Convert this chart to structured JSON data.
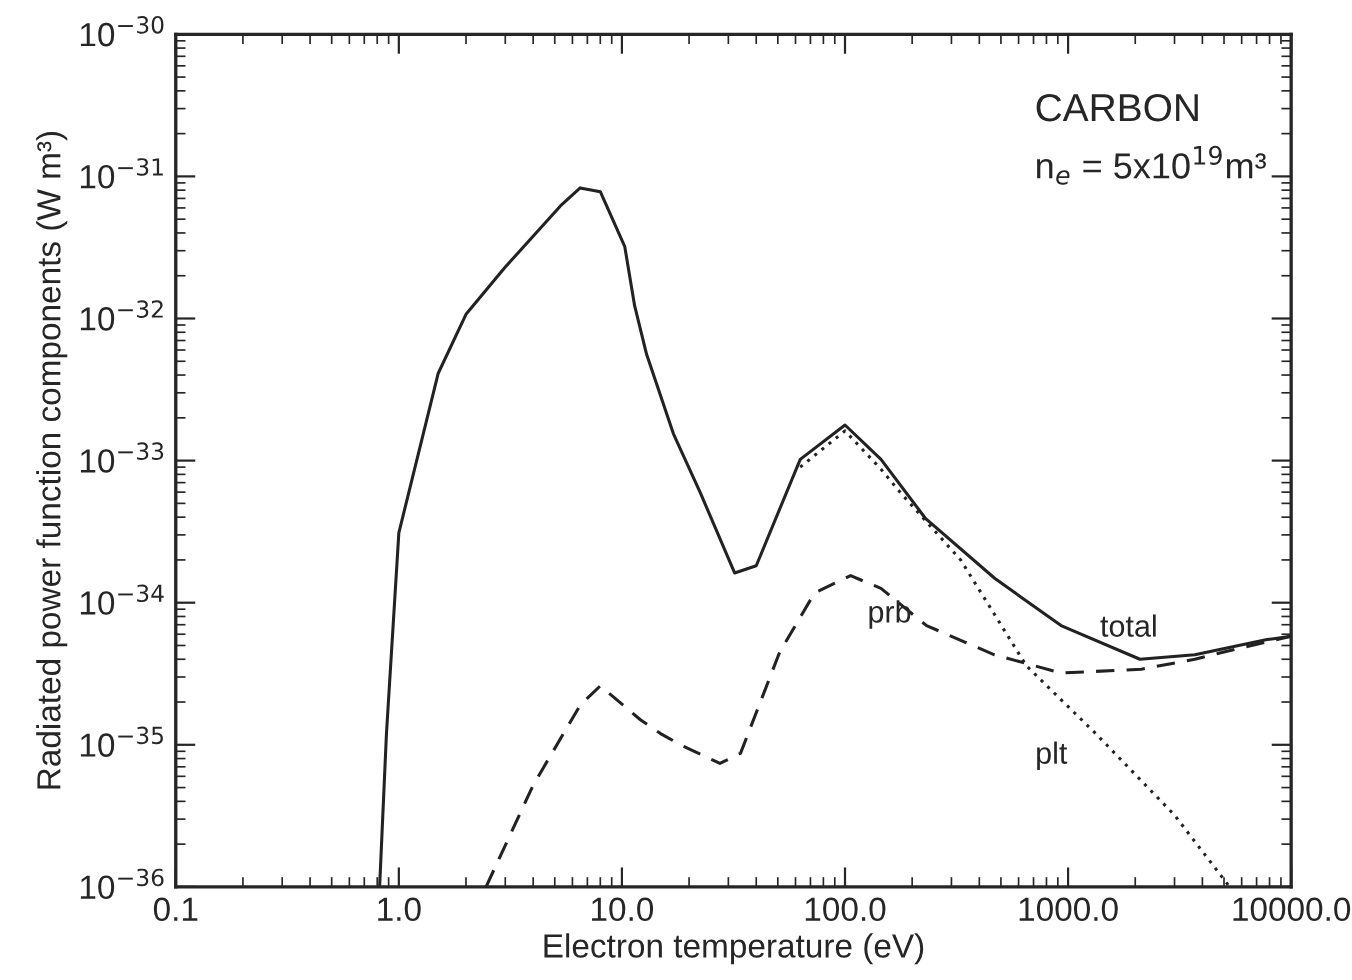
{
  "chart_data": {
    "type": "line",
    "xlabel": "Electron temperature (eV)",
    "ylabel": "Radiated power function components (W m³)",
    "log": "xy",
    "grid": false,
    "legend": false,
    "marker": "none",
    "xlim": [
      0.1,
      10000
    ],
    "ylim": [
      1e-36,
      1e-30
    ],
    "xticks": [
      {
        "value": 0.1,
        "label": "0.1"
      },
      {
        "value": 1,
        "label": "1.0"
      },
      {
        "value": 10,
        "label": "10.0"
      },
      {
        "value": 100,
        "label": "100.0"
      },
      {
        "value": 1000,
        "label": "1000.0"
      },
      {
        "value": 10000,
        "label": "10000.0"
      }
    ],
    "yticks": [
      {
        "value": 1e-36,
        "label": "10$^{−36}$"
      },
      {
        "value": 1e-35,
        "label": "10$^{−35}$"
      },
      {
        "value": 1e-34,
        "label": "10$^{−34}$"
      },
      {
        "value": 1e-33,
        "label": "10$^{−33}$"
      },
      {
        "value": 1e-32,
        "label": "10$^{−32}$"
      },
      {
        "value": 1e-31,
        "label": "10$^{−31}$"
      },
      {
        "value": 1e-30,
        "label": "10$^{−30}$"
      }
    ],
    "series": [
      {
        "name": "total",
        "color": "#222222",
        "line_style": "solid",
        "x": [
          0.82,
          0.88,
          1.0,
          1.5,
          2.0,
          3.0,
          5.3,
          6.5,
          8.0,
          10.3,
          11.4,
          12.9,
          17,
          22.5,
          32,
          40,
          63,
          100,
          145,
          230,
          470,
          930,
          2100,
          3700,
          7800,
          10000
        ],
        "values": [
          1e-36,
          1.2e-35,
          3.1e-34,
          4.1e-33,
          1.07e-32,
          2.3e-32,
          6.2e-32,
          8.3e-32,
          7.8e-32,
          3.2e-32,
          1.23e-32,
          5.6e-33,
          1.55e-33,
          5.9e-34,
          1.62e-34,
          1.82e-34,
          1.02e-33,
          1.78e-33,
          1.02e-33,
          3.9e-34,
          1.48e-34,
          6.9e-35,
          4e-35,
          4.3e-35,
          5.5e-35,
          5.8e-35
        ]
      },
      {
        "name": "prb",
        "color": "#222222",
        "line_style": "dashed",
        "x": [
          2.46,
          4.0,
          6.5,
          8.0,
          12.1,
          14.9,
          18.3,
          27.5,
          34,
          51,
          73,
          106,
          145,
          232,
          468,
          930,
          2130,
          3700,
          5600,
          10000
        ],
        "values": [
          1e-36,
          5.2e-36,
          1.9e-35,
          2.6e-35,
          1.5e-35,
          1.2e-35,
          1e-35,
          7.4e-36,
          8.7e-36,
          4.5e-35,
          1.17e-34,
          1.55e-34,
          1.26e-34,
          6.9e-35,
          4.3e-35,
          3.2e-35,
          3.4e-35,
          4e-35,
          4.7e-35,
          5.8e-35
        ]
      },
      {
        "name": "plt",
        "color": "#222222",
        "line_style": "dotted",
        "x": [
          63,
          100,
          145,
          178,
          330,
          650,
          1330,
          3000,
          5300
        ],
        "values": [
          9e-34,
          1.62e-33,
          8.7e-34,
          5.9e-34,
          2e-34,
          3.6e-35,
          1.2e-35,
          3.2e-36,
          1e-36
        ]
      }
    ],
    "annotations": [
      "CARBON",
      "n$_{e}$ = 5x10$^{19}$m³"
    ]
  }
}
